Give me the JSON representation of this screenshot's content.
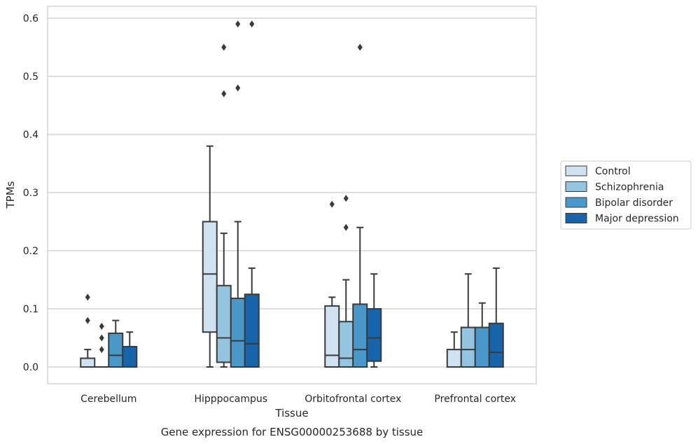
{
  "caption": "Gene expression for ENSG00000253688 by tissue",
  "chart_data": {
    "type": "box",
    "xlabel": "Tissue",
    "ylabel": "TPMs",
    "ylim": [
      -0.03,
      0.62
    ],
    "yticks": [
      "0.0",
      "0.1",
      "0.2",
      "0.3",
      "0.4",
      "0.5",
      "0.6"
    ],
    "grid": "horizontal",
    "legend_placement": "right",
    "categories": [
      "Cerebellum",
      "Hipppocampus",
      "Orbitofrontal cortex",
      "Prefrontal cortex"
    ],
    "series": [
      {
        "name": "Control",
        "color": "#d0e1f2",
        "boxes": [
          {
            "min": 0.0,
            "q1": 0.0,
            "median": 0.0,
            "q3": 0.015,
            "max": 0.03,
            "outliers": [
              0.08,
              0.12
            ]
          },
          {
            "min": 0.0,
            "q1": 0.06,
            "median": 0.16,
            "q3": 0.25,
            "max": 0.38,
            "outliers": []
          },
          {
            "min": 0.0,
            "q1": 0.0,
            "median": 0.02,
            "q3": 0.105,
            "max": 0.12,
            "outliers": [
              0.28
            ]
          },
          {
            "min": 0.0,
            "q1": 0.0,
            "median": 0.0,
            "q3": 0.03,
            "max": 0.06,
            "outliers": []
          }
        ]
      },
      {
        "name": "Schizophrenia",
        "color": "#94c4df",
        "boxes": [
          {
            "min": 0.0,
            "q1": 0.0,
            "median": 0.0,
            "q3": 0.0,
            "max": 0.0,
            "outliers": [
              0.03,
              0.05,
              0.07
            ]
          },
          {
            "min": 0.0,
            "q1": 0.008,
            "median": 0.05,
            "q3": 0.14,
            "max": 0.23,
            "outliers": [
              0.47,
              0.55
            ]
          },
          {
            "min": 0.0,
            "q1": 0.0,
            "median": 0.015,
            "q3": 0.078,
            "max": 0.15,
            "outliers": [
              0.24,
              0.29
            ]
          },
          {
            "min": 0.0,
            "q1": 0.0,
            "median": 0.03,
            "q3": 0.068,
            "max": 0.16,
            "outliers": []
          }
        ]
      },
      {
        "name": "Bipolar disorder",
        "color": "#4a98c9",
        "boxes": [
          {
            "min": 0.0,
            "q1": 0.0,
            "median": 0.02,
            "q3": 0.058,
            "max": 0.08,
            "outliers": []
          },
          {
            "min": 0.0,
            "q1": 0.0,
            "median": 0.045,
            "q3": 0.118,
            "max": 0.25,
            "outliers": [
              0.48,
              0.59
            ]
          },
          {
            "min": 0.0,
            "q1": 0.0,
            "median": 0.03,
            "q3": 0.108,
            "max": 0.24,
            "outliers": [
              0.55
            ]
          },
          {
            "min": 0.0,
            "q1": 0.0,
            "median": 0.0,
            "q3": 0.068,
            "max": 0.11,
            "outliers": []
          }
        ]
      },
      {
        "name": "Major depression",
        "color": "#1764ab",
        "boxes": [
          {
            "min": 0.0,
            "q1": 0.0,
            "median": 0.0,
            "q3": 0.035,
            "max": 0.06,
            "outliers": []
          },
          {
            "min": 0.0,
            "q1": 0.0,
            "median": 0.04,
            "q3": 0.125,
            "max": 0.17,
            "outliers": [
              0.59
            ]
          },
          {
            "min": 0.0,
            "q1": 0.01,
            "median": 0.05,
            "q3": 0.1,
            "max": 0.16,
            "outliers": []
          },
          {
            "min": 0.0,
            "q1": 0.0,
            "median": 0.025,
            "q3": 0.075,
            "max": 0.17,
            "outliers": []
          }
        ]
      }
    ]
  }
}
